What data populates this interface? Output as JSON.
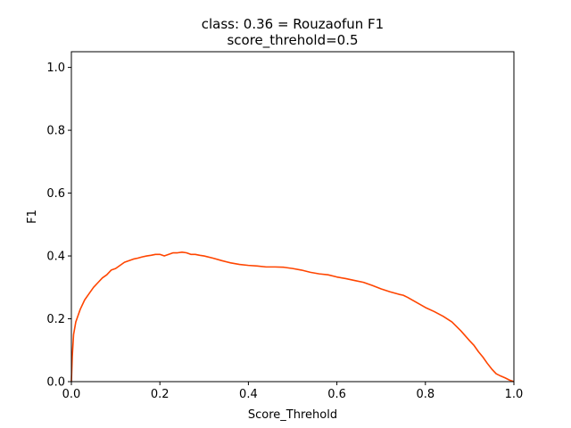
{
  "chart_data": {
    "type": "line",
    "title": "class: 0.36 = Rouzaofun F1",
    "subtitle": "score_threhold=0.5",
    "xlabel": "Score_Threhold",
    "ylabel": "F1",
    "xlim": [
      0.0,
      1.0
    ],
    "ylim": [
      0.0,
      1.05
    ],
    "xticks": [
      0.0,
      0.2,
      0.4,
      0.6,
      0.8,
      1.0
    ],
    "xtick_labels": [
      "0.0",
      "0.2",
      "0.4",
      "0.6",
      "0.8",
      "1.0"
    ],
    "yticks": [
      0.0,
      0.2,
      0.4,
      0.6,
      0.8,
      1.0
    ],
    "ytick_labels": [
      "0.0",
      "0.2",
      "0.4",
      "0.6",
      "0.8",
      "1.0"
    ],
    "grid": false,
    "line_color": "#ff4500",
    "series": [
      {
        "x": [
          0.0,
          0.002,
          0.005,
          0.01,
          0.015,
          0.02,
          0.03,
          0.04,
          0.05,
          0.06,
          0.07,
          0.08,
          0.09,
          0.1,
          0.11,
          0.12,
          0.13,
          0.14,
          0.15,
          0.16,
          0.17,
          0.18,
          0.19,
          0.2,
          0.21,
          0.22,
          0.23,
          0.24,
          0.25,
          0.26,
          0.27,
          0.28,
          0.29,
          0.3,
          0.32,
          0.34,
          0.36,
          0.38,
          0.4,
          0.42,
          0.44,
          0.46,
          0.48,
          0.5,
          0.52,
          0.54,
          0.56,
          0.58,
          0.6,
          0.62,
          0.64,
          0.66,
          0.68,
          0.7,
          0.72,
          0.74,
          0.75,
          0.76,
          0.78,
          0.8,
          0.82,
          0.84,
          0.86,
          0.88,
          0.9,
          0.91,
          0.92,
          0.93,
          0.94,
          0.95,
          0.96,
          0.97,
          0.98,
          0.99,
          1.0
        ],
        "y": [
          0.0,
          0.08,
          0.15,
          0.19,
          0.21,
          0.23,
          0.26,
          0.28,
          0.3,
          0.315,
          0.33,
          0.34,
          0.355,
          0.36,
          0.37,
          0.38,
          0.385,
          0.39,
          0.393,
          0.397,
          0.4,
          0.402,
          0.405,
          0.405,
          0.4,
          0.405,
          0.41,
          0.41,
          0.412,
          0.41,
          0.405,
          0.405,
          0.402,
          0.4,
          0.393,
          0.385,
          0.378,
          0.373,
          0.37,
          0.368,
          0.365,
          0.365,
          0.364,
          0.36,
          0.355,
          0.348,
          0.343,
          0.34,
          0.333,
          0.328,
          0.322,
          0.316,
          0.306,
          0.295,
          0.286,
          0.278,
          0.275,
          0.268,
          0.252,
          0.236,
          0.223,
          0.208,
          0.19,
          0.162,
          0.13,
          0.115,
          0.095,
          0.078,
          0.058,
          0.04,
          0.025,
          0.018,
          0.012,
          0.005,
          0.0
        ]
      }
    ]
  }
}
